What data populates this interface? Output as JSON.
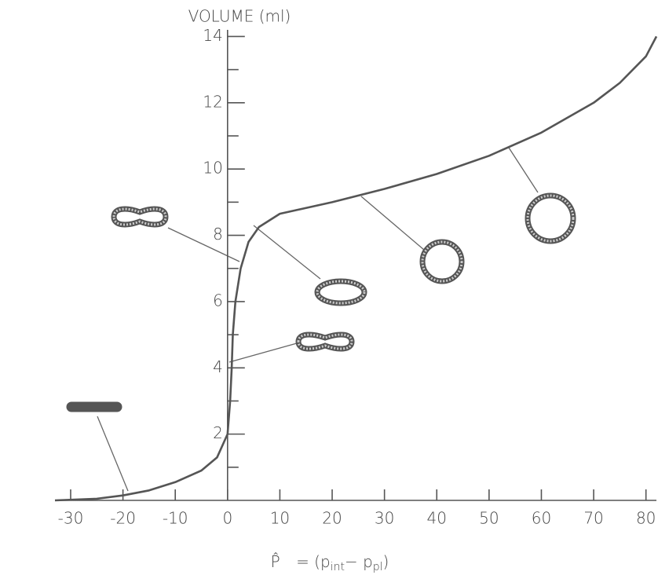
{
  "chart_data": {
    "type": "line",
    "y_label": "VOLUME (ml)",
    "x_label_parts": [
      "P̂",
      "= (p",
      "int",
      "− p",
      "pl",
      ")"
    ],
    "x": [
      -33,
      -25,
      -20,
      -15,
      -10,
      -5,
      -2,
      0,
      0.5,
      0.8,
      1,
      1.5,
      2.5,
      4,
      6,
      10,
      20,
      30,
      40,
      50,
      60,
      70,
      75,
      80,
      82
    ],
    "values": [
      0,
      0.05,
      0.15,
      0.3,
      0.55,
      0.9,
      1.3,
      2.0,
      3.0,
      4.0,
      5.0,
      6.0,
      7.0,
      7.8,
      8.25,
      8.65,
      9.0,
      9.4,
      9.85,
      10.4,
      11.1,
      12.0,
      12.6,
      13.4,
      14.0
    ],
    "color": "#555555",
    "xlim": [
      -33,
      82
    ],
    "ylim": [
      0,
      14.2
    ],
    "xticks": [
      -30,
      -20,
      -10,
      0,
      10,
      20,
      30,
      40,
      50,
      60,
      70,
      80
    ],
    "yticks": [
      2,
      4,
      6,
      8,
      10,
      12,
      14
    ],
    "minor_yticks": [
      1,
      3,
      5,
      7,
      9,
      11,
      13
    ]
  }
}
